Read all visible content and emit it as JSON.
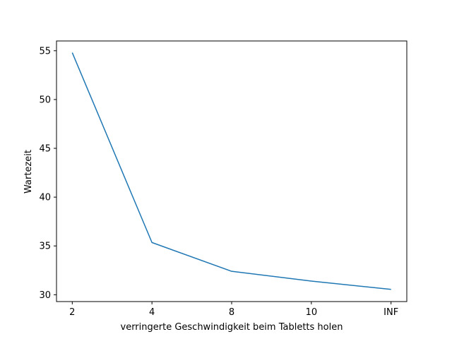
{
  "chart_data": {
    "type": "line",
    "xlabel": "verringerte Geschwindigkeit beim Tabletts holen",
    "ylabel": "Wartezeit",
    "categories": [
      "2",
      "4",
      "8",
      "10",
      "INF"
    ],
    "series": [
      {
        "values": [
          54.8,
          35.35,
          32.4,
          31.4,
          30.55
        ],
        "color": "#1f77b4"
      }
    ],
    "yticks": [
      30,
      35,
      40,
      45,
      50,
      55
    ],
    "ylim": [
      29.3,
      56.0
    ],
    "grid": false,
    "legend": "none"
  }
}
